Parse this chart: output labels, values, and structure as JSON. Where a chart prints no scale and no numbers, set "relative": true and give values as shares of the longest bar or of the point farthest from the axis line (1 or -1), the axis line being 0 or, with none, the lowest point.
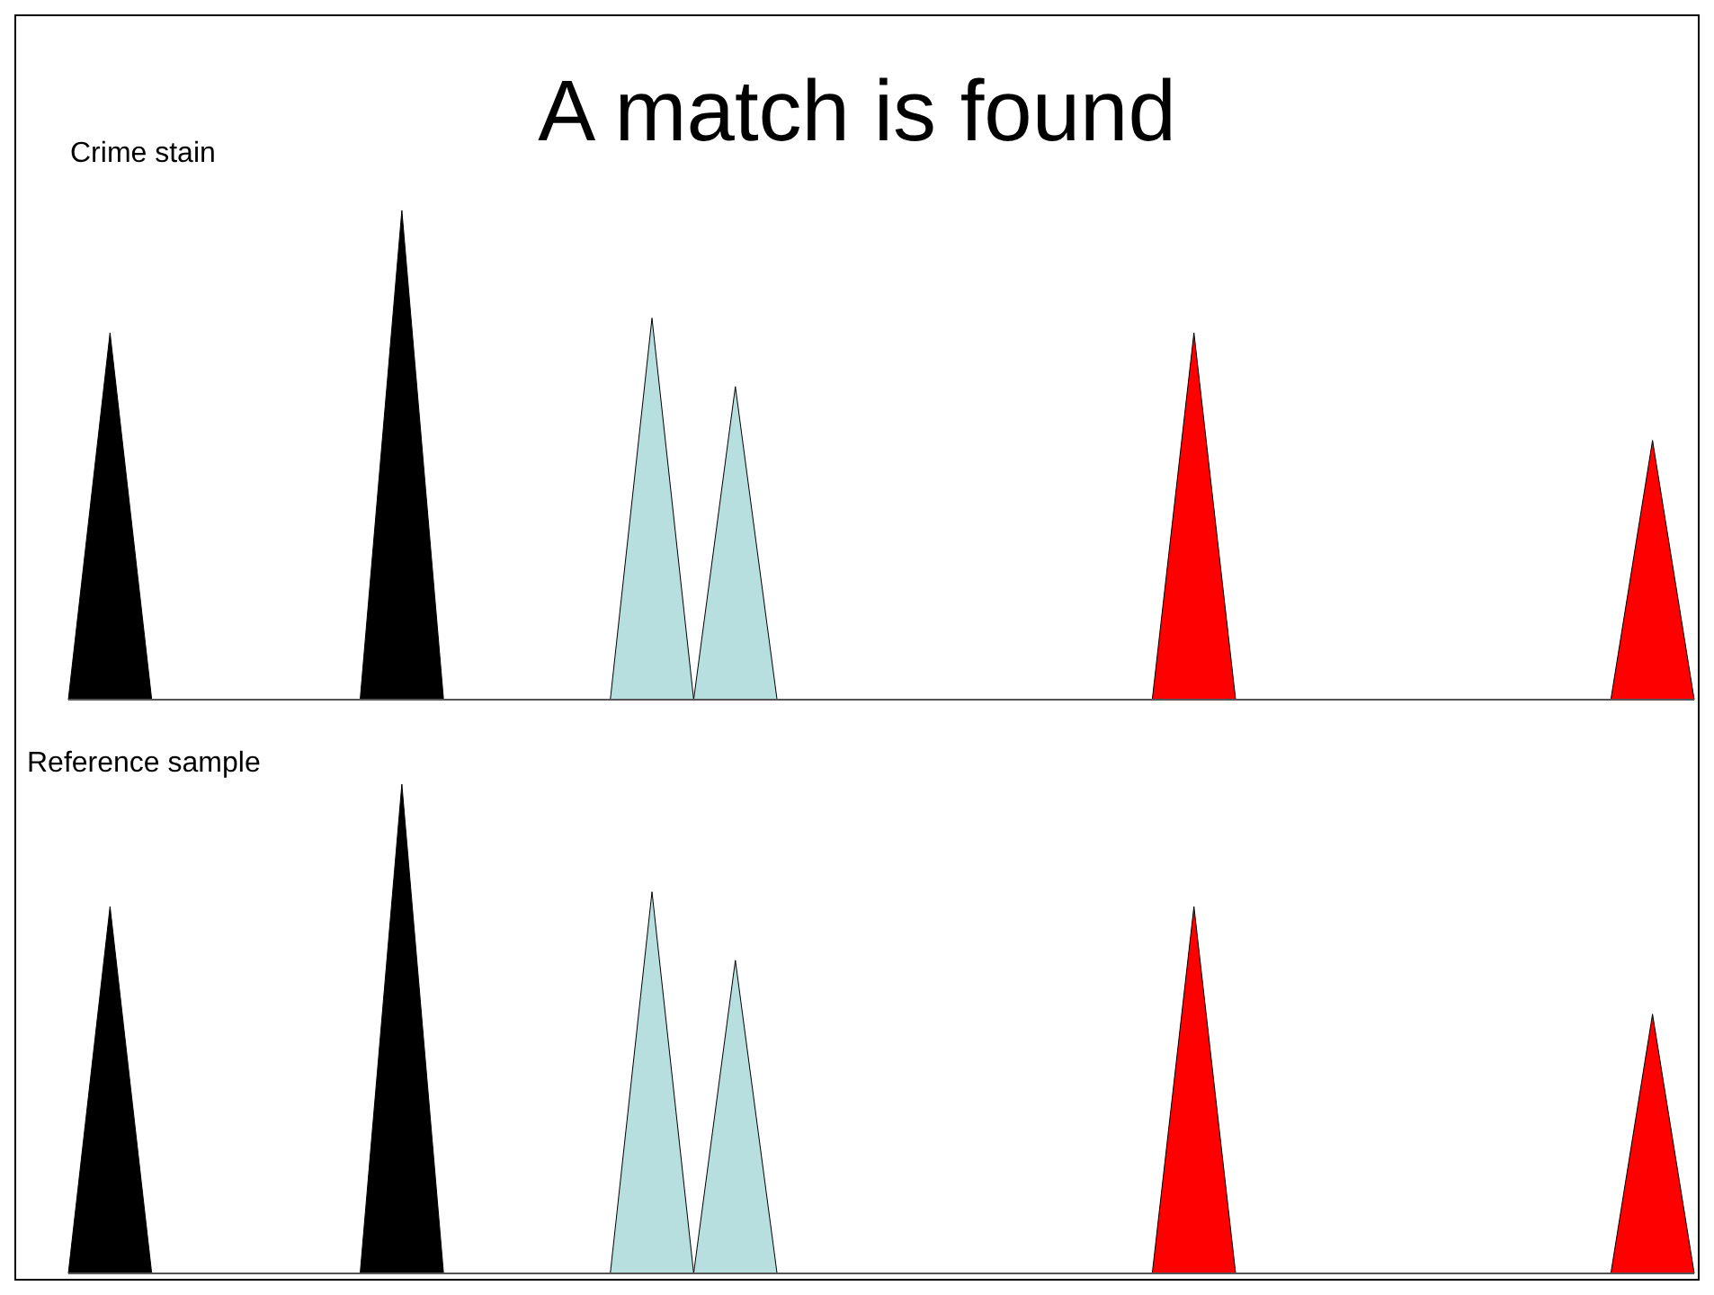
{
  "chart_data": [
    {
      "type": "area",
      "title": "A match is found",
      "annotations": [
        "Crime stain"
      ],
      "relative": true,
      "categories": [
        null,
        null,
        null,
        null,
        null,
        null,
        null,
        null,
        null,
        null,
        null,
        null,
        null,
        null,
        null,
        null,
        null,
        null,
        null,
        null,
        null,
        null,
        null,
        null,
        null,
        null,
        null,
        null,
        null,
        null,
        null,
        null,
        null,
        null,
        null,
        null,
        null,
        null,
        null,
        null
      ],
      "series": [
        {
          "color": "#000000",
          "values": [
            0,
            0.75,
            0,
            null,
            null,
            null,
            null,
            0,
            1,
            0,
            null,
            null,
            null,
            null,
            null,
            null,
            null,
            null,
            null,
            null,
            null,
            null,
            null,
            null,
            null,
            null,
            null,
            null,
            null,
            null,
            null,
            null,
            null,
            null,
            null,
            null,
            null,
            null,
            null,
            null
          ]
        },
        {
          "color": "#b8dfe0",
          "values": [
            null,
            null,
            null,
            null,
            null,
            null,
            null,
            null,
            null,
            null,
            null,
            null,
            null,
            0,
            0.78,
            0,
            0.64,
            0,
            null,
            null,
            null,
            null,
            null,
            null,
            null,
            null,
            null,
            null,
            null,
            null,
            null,
            null,
            null,
            null,
            null,
            null,
            null,
            null,
            null,
            null
          ]
        },
        {
          "color": "#ff0000",
          "values": [
            null,
            null,
            null,
            null,
            null,
            null,
            null,
            null,
            null,
            null,
            null,
            null,
            null,
            null,
            null,
            null,
            null,
            null,
            null,
            null,
            null,
            null,
            null,
            null,
            null,
            null,
            0,
            0.75,
            0,
            null,
            null,
            null,
            null,
            null,
            null,
            null,
            null,
            0,
            0.53,
            0
          ]
        }
      ]
    },
    {
      "type": "area",
      "annotations": [
        "Reference sample"
      ],
      "relative": true,
      "categories": [
        null,
        null,
        null,
        null,
        null,
        null,
        null,
        null,
        null,
        null,
        null,
        null,
        null,
        null,
        null,
        null,
        null,
        null,
        null,
        null,
        null,
        null,
        null,
        null,
        null,
        null,
        null,
        null,
        null,
        null,
        null,
        null,
        null,
        null,
        null,
        null,
        null,
        null,
        null,
        null
      ],
      "series": [
        {
          "color": "#000000",
          "values": [
            0,
            0.75,
            0,
            null,
            null,
            null,
            null,
            0,
            1,
            0,
            null,
            null,
            null,
            null,
            null,
            null,
            null,
            null,
            null,
            null,
            null,
            null,
            null,
            null,
            null,
            null,
            null,
            null,
            null,
            null,
            null,
            null,
            null,
            null,
            null,
            null,
            null,
            null,
            null,
            null
          ]
        },
        {
          "color": "#b8dfe0",
          "values": [
            null,
            null,
            null,
            null,
            null,
            null,
            null,
            null,
            null,
            null,
            null,
            null,
            null,
            0,
            0.78,
            0,
            0.64,
            0,
            null,
            null,
            null,
            null,
            null,
            null,
            null,
            null,
            null,
            null,
            null,
            null,
            null,
            null,
            null,
            null,
            null,
            null,
            null,
            null,
            null,
            null
          ]
        },
        {
          "color": "#ff0000",
          "values": [
            null,
            null,
            null,
            null,
            null,
            null,
            null,
            null,
            null,
            null,
            null,
            null,
            null,
            null,
            null,
            null,
            null,
            null,
            null,
            null,
            null,
            null,
            null,
            null,
            null,
            null,
            0,
            0.75,
            0,
            null,
            null,
            null,
            null,
            null,
            null,
            null,
            null,
            0,
            0.53,
            0
          ]
        }
      ]
    }
  ]
}
